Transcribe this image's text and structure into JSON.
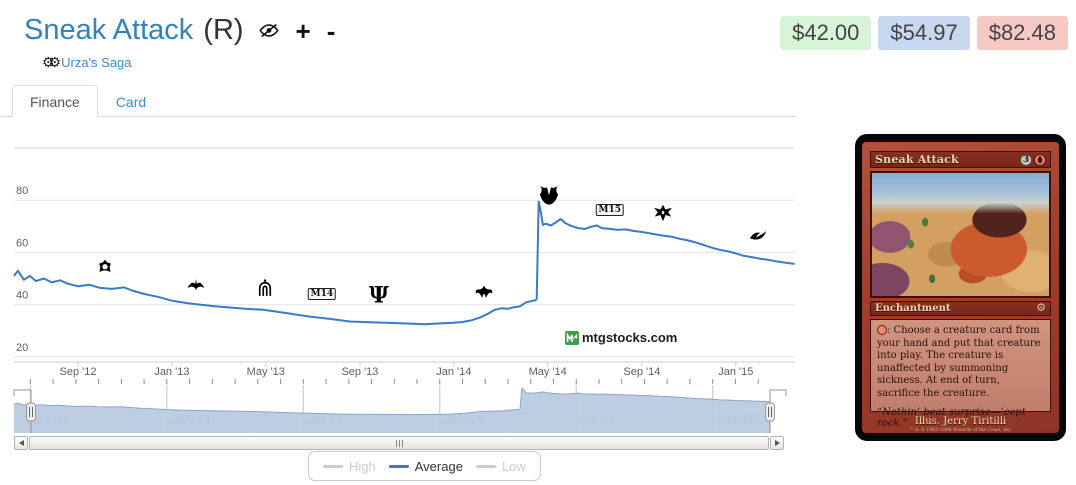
{
  "header": {
    "title": "Sneak Attack",
    "rarity": "(R)",
    "add_label": "+",
    "remove_label": "-",
    "set_link": "Urza's Saga"
  },
  "prices": {
    "low": "$42.00",
    "avg": "$54.97",
    "high": "$82.48"
  },
  "tabs": {
    "finance": "Finance",
    "card": "Card"
  },
  "watermark": "mtgstocks.com",
  "legend": {
    "high": "High",
    "average": "Average",
    "low": "Low"
  },
  "chart_data": {
    "type": "line",
    "title": "",
    "xlabel": "",
    "ylabel": "",
    "grid": true,
    "legend_position": "bottom",
    "ylim": [
      18,
      100
    ],
    "xlim": [
      2012.44,
      2015.21
    ],
    "yticks": [
      20,
      40,
      60,
      80
    ],
    "xticks": [
      {
        "t": 2012.667,
        "label": "Sep '12"
      },
      {
        "t": 2013.0,
        "label": "Jan '13"
      },
      {
        "t": 2013.333,
        "label": "May '13"
      },
      {
        "t": 2013.667,
        "label": "Sep '13"
      },
      {
        "t": 2014.0,
        "label": "Jan '14"
      },
      {
        "t": 2014.333,
        "label": "May '14"
      },
      {
        "t": 2014.667,
        "label": "Sep '14"
      },
      {
        "t": 2015.0,
        "label": "Jan '15"
      }
    ],
    "series": [
      {
        "name": "High",
        "color": "#cccccc",
        "visible": false,
        "points": []
      },
      {
        "name": "Average",
        "color": "#3a7ac8",
        "visible": true,
        "points": [
          [
            2012.44,
            51
          ],
          [
            2012.454,
            53
          ],
          [
            2012.475,
            49.5
          ],
          [
            2012.496,
            51
          ],
          [
            2012.518,
            49
          ],
          [
            2012.546,
            50
          ],
          [
            2012.574,
            48.5
          ],
          [
            2012.603,
            49.3
          ],
          [
            2012.631,
            48
          ],
          [
            2012.667,
            47
          ],
          [
            2012.709,
            47.6
          ],
          [
            2012.745,
            46.4
          ],
          [
            2012.787,
            46
          ],
          [
            2012.83,
            46.6
          ],
          [
            2012.858,
            45.4
          ],
          [
            2012.904,
            44
          ],
          [
            2012.95,
            43
          ],
          [
            2013.0,
            41.5
          ],
          [
            2013.05,
            40.6
          ],
          [
            2013.099,
            40
          ],
          [
            2013.152,
            39.4
          ],
          [
            2013.206,
            38.9
          ],
          [
            2013.259,
            38.4
          ],
          [
            2013.323,
            38
          ],
          [
            2013.401,
            36.8
          ],
          [
            2013.489,
            35.4
          ],
          [
            2013.56,
            34.5
          ],
          [
            2013.631,
            33.5
          ],
          [
            2013.702,
            33.2
          ],
          [
            2013.773,
            33
          ],
          [
            2013.844,
            32.7
          ],
          [
            2013.897,
            32.5
          ],
          [
            2013.95,
            32.8
          ],
          [
            2013.993,
            33
          ],
          [
            2014.028,
            33.3
          ],
          [
            2014.064,
            34
          ],
          [
            2014.092,
            35
          ],
          [
            2014.121,
            36.5
          ],
          [
            2014.145,
            38
          ],
          [
            2014.17,
            38.6
          ],
          [
            2014.191,
            38.4
          ],
          [
            2014.213,
            39
          ],
          [
            2014.234,
            39.3
          ],
          [
            2014.255,
            40.8
          ],
          [
            2014.273,
            41.3
          ],
          [
            2014.287,
            41.6
          ],
          [
            2014.294,
            42
          ],
          [
            2014.301,
            79.5
          ],
          [
            2014.309,
            75
          ],
          [
            2014.316,
            70.5
          ],
          [
            2014.326,
            71
          ],
          [
            2014.344,
            70.3
          ],
          [
            2014.362,
            71.5
          ],
          [
            2014.379,
            72.8
          ],
          [
            2014.394,
            71.3
          ],
          [
            2014.415,
            70.2
          ],
          [
            2014.44,
            69.3
          ],
          [
            2014.465,
            69
          ],
          [
            2014.486,
            69.8
          ],
          [
            2014.507,
            70.3
          ],
          [
            2014.525,
            69.3
          ],
          [
            2014.553,
            69
          ],
          [
            2014.582,
            68.6
          ],
          [
            2014.61,
            68.8
          ],
          [
            2014.638,
            68.2
          ],
          [
            2014.667,
            67.8
          ],
          [
            2014.695,
            67.3
          ],
          [
            2014.72,
            66.8
          ],
          [
            2014.745,
            66.4
          ],
          [
            2014.773,
            66
          ],
          [
            2014.801,
            65.2
          ],
          [
            2014.83,
            64.6
          ],
          [
            2014.858,
            63.8
          ],
          [
            2014.887,
            62.8
          ],
          [
            2014.915,
            61.8
          ],
          [
            2014.943,
            61
          ],
          [
            2014.972,
            60.4
          ],
          [
            2015.0,
            59.6
          ],
          [
            2015.028,
            58.7
          ],
          [
            2015.057,
            58.2
          ],
          [
            2015.085,
            57.6
          ],
          [
            2015.113,
            57.2
          ],
          [
            2015.142,
            56.6
          ],
          [
            2015.177,
            56
          ],
          [
            2015.209,
            55.6
          ]
        ]
      },
      {
        "name": "Low",
        "color": "#cccccc",
        "visible": false,
        "points": []
      }
    ],
    "annotations": [
      {
        "icon": "set-return-to-ravnica-icon",
        "t": 2012.762,
        "v": 54.2
      },
      {
        "icon": "set-gatecrash-icon",
        "t": 2013.085,
        "v": 48.0
      },
      {
        "icon": "set-dragons-maze-icon",
        "t": 2013.33,
        "v": 46.3
      },
      {
        "icon": "set-m14-icon",
        "label": "M14",
        "t": 2013.532,
        "v": 44.8
      },
      {
        "icon": "set-theros-icon",
        "glyph": "Ψ",
        "t": 2013.734,
        "v": 43.3
      },
      {
        "icon": "set-born-of-the-gods-icon",
        "t": 2014.106,
        "v": 44.4
      },
      {
        "icon": "set-journey-into-nyx-icon",
        "t": 2014.337,
        "v": 81.5
      },
      {
        "icon": "set-m15-icon",
        "label": "M15",
        "t": 2014.553,
        "v": 76.9
      },
      {
        "icon": "set-khans-of-tarkir-icon",
        "t": 2014.741,
        "v": 75.0
      },
      {
        "icon": "set-fate-reforged-icon",
        "t": 2015.078,
        "v": 66.5
      }
    ],
    "navigator_ticks": [
      {
        "t": 2012.5,
        "label": "Jul '12"
      },
      {
        "t": 2013.0,
        "label": "Jan '13"
      },
      {
        "t": 2013.5,
        "label": "Jul '13"
      },
      {
        "t": 2014.0,
        "label": "Jan '14"
      },
      {
        "t": 2014.5,
        "label": "Jul '14"
      },
      {
        "t": 2015.0,
        "label": "Jan '15"
      }
    ]
  },
  "card": {
    "title": "Sneak Attack",
    "mana_generic": "3",
    "type_line": "Enchantment",
    "rules_text": ": Choose a creature card from your hand and put that creature into play. The creature is unaffected by summoning sickness. At end of turn, sacrifice the creature.",
    "flavor_text": "“Nothin’ beat surprise—’cept rock.”",
    "artist_line": "Illus. Jerry Tiritilli",
    "copyright": "™ & © 1993–1998 Wizards of the Coast, Inc."
  }
}
